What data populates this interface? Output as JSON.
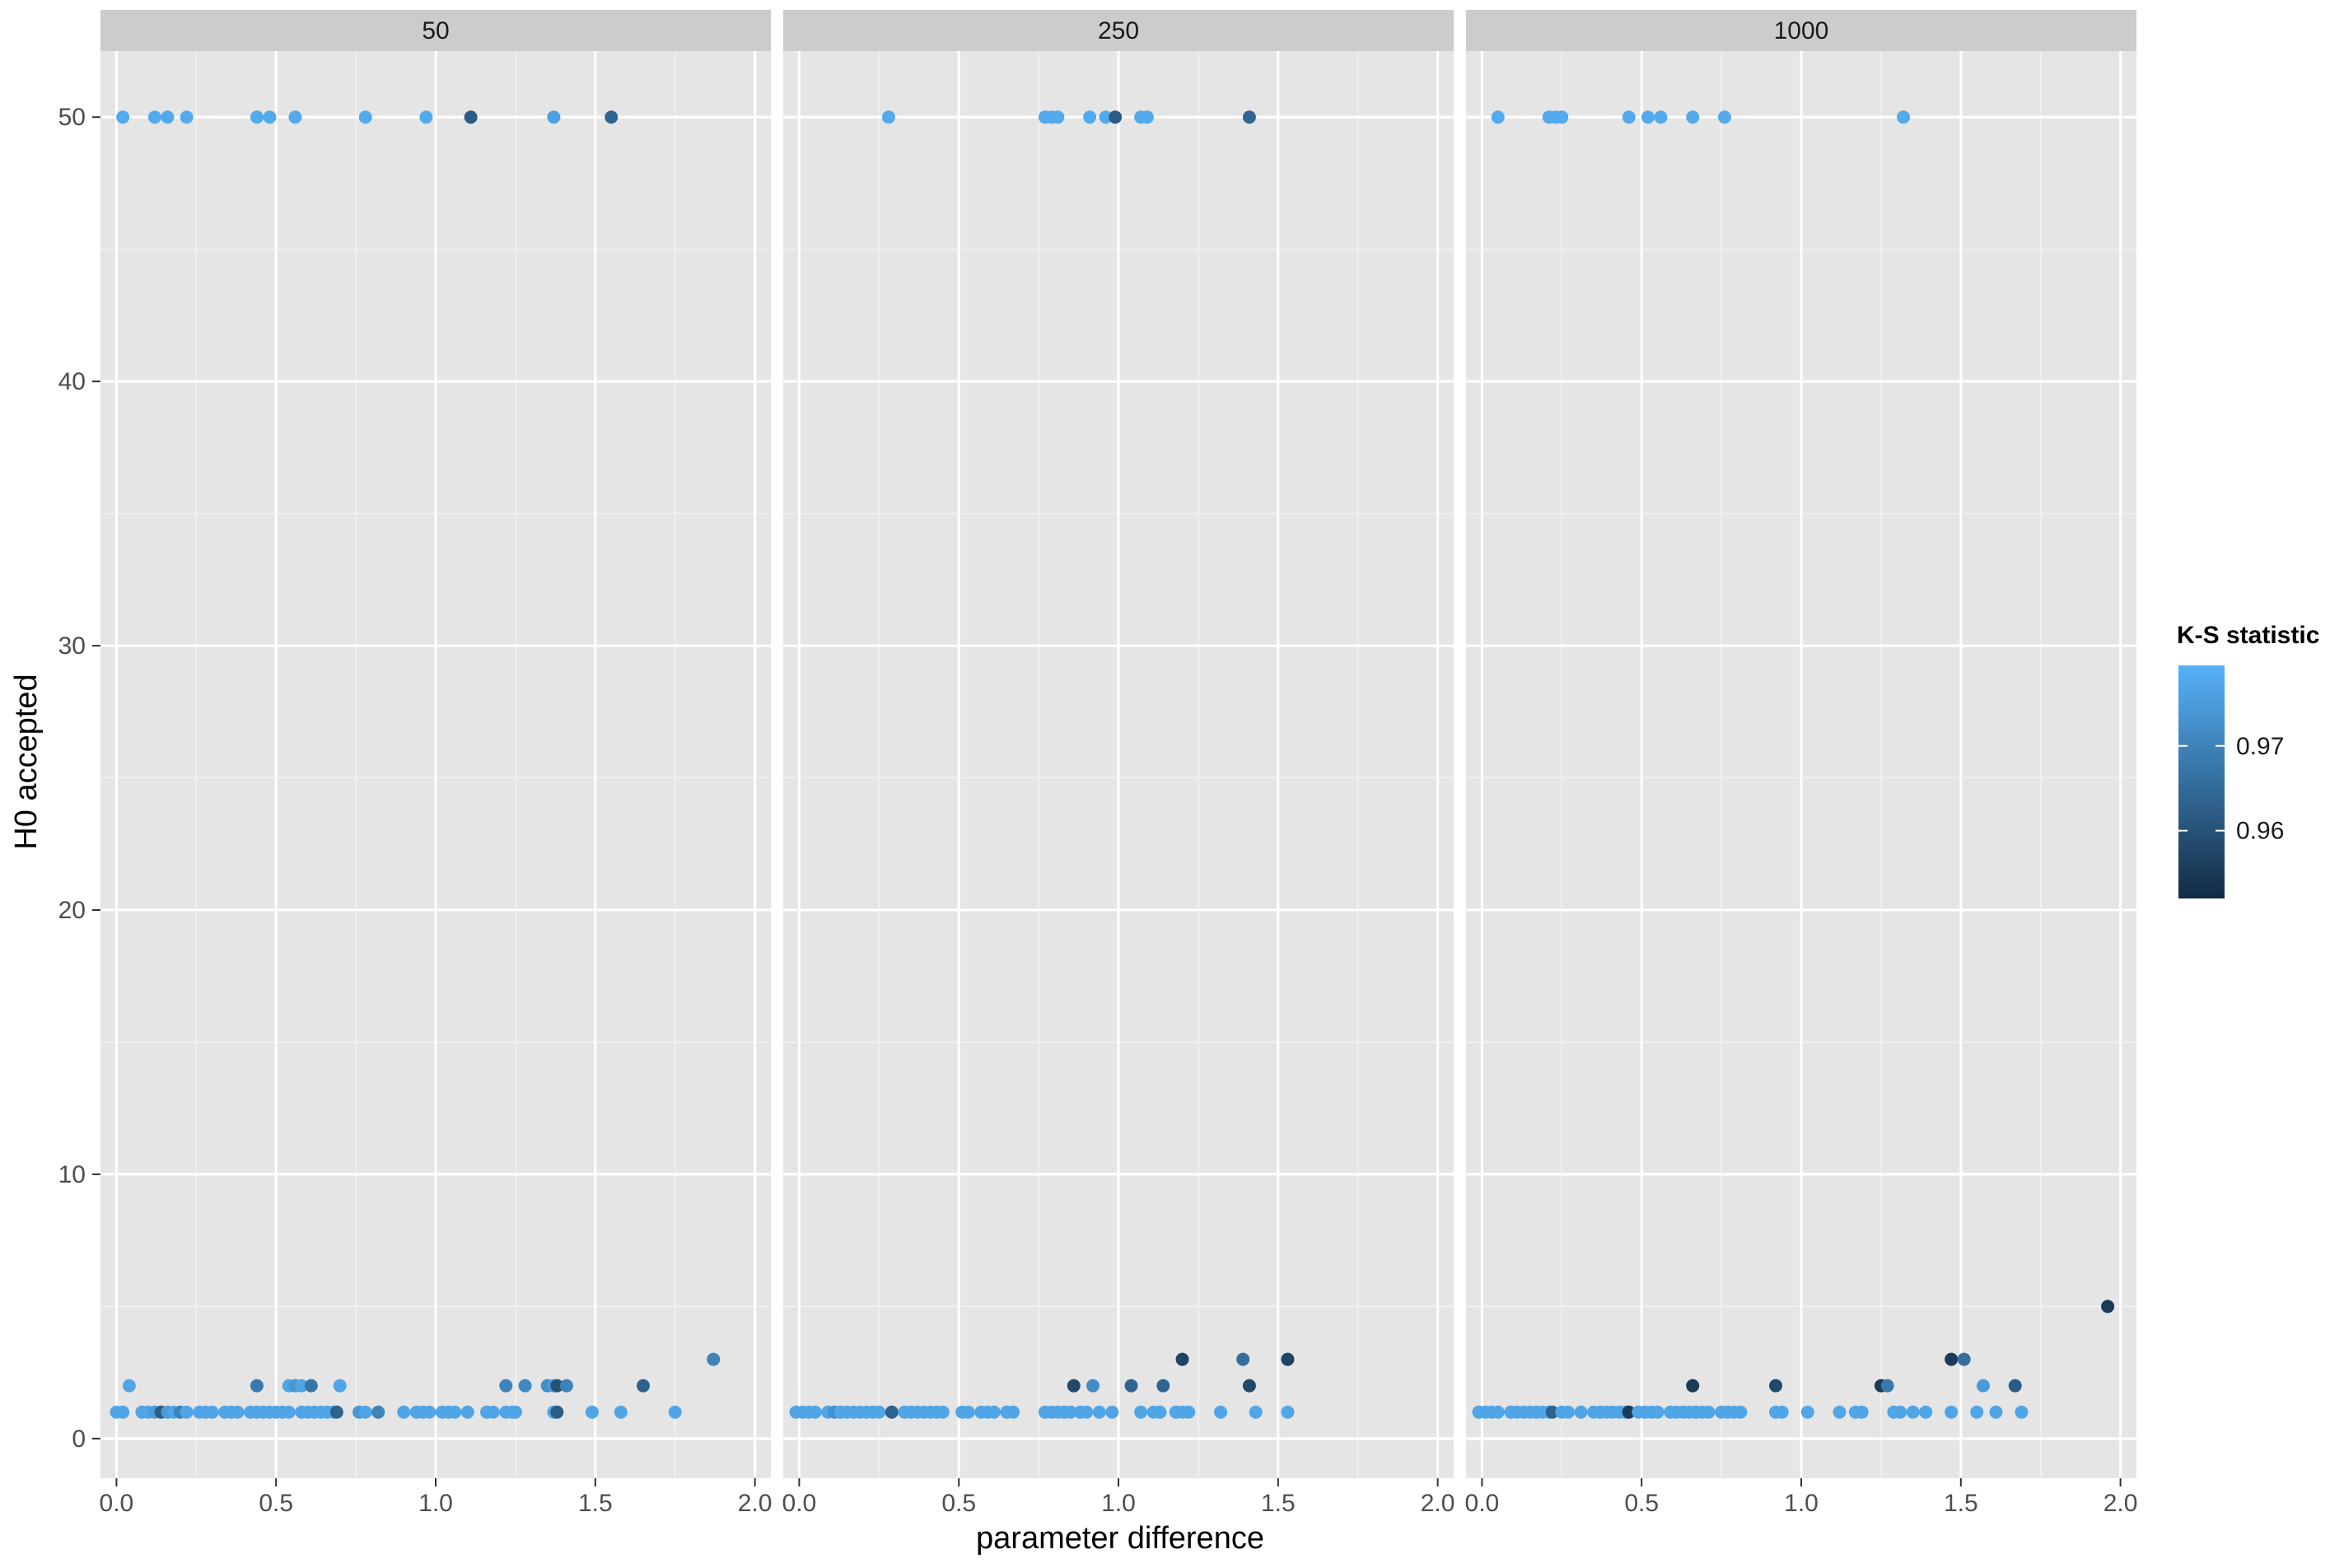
{
  "chart_data": {
    "type": "scatter",
    "facet_labels": [
      "50",
      "250",
      "1000"
    ],
    "xlabel": "parameter difference",
    "ylabel": "H0 accepted",
    "xlim": [
      -0.05,
      2.05
    ],
    "ylim": [
      -1.5,
      52.5
    ],
    "xticks": [
      "0.0",
      "0.5",
      "1.0",
      "1.5",
      "2.0"
    ],
    "xtick_values": [
      0,
      0.5,
      1,
      1.5,
      2
    ],
    "yticks": [
      "0",
      "10",
      "20",
      "30",
      "40",
      "50"
    ],
    "ytick_values": [
      0,
      10,
      20,
      30,
      40,
      50
    ],
    "grid": true,
    "legend": {
      "title": "K-S statistic",
      "position": "right",
      "ticks": [
        "0.97",
        "0.96"
      ],
      "tick_values": [
        0.97,
        0.96
      ],
      "range": [
        0.952,
        0.9795
      ],
      "color_low": "#132B43",
      "color_high": "#56B1F7"
    },
    "colors": {
      "panel_bg": "#e5e5e5",
      "strip_bg": "#cccccc",
      "grid_major": "#ffffff",
      "grid_minor": "#f2f2f2",
      "tick_text": "#4d4d4d"
    },
    "series": [
      {
        "facet": "50",
        "points": [
          [
            0.02,
            50,
            0.978
          ],
          [
            0.12,
            50,
            0.978
          ],
          [
            0.16,
            50,
            0.978
          ],
          [
            0.22,
            50,
            0.978
          ],
          [
            0.44,
            50,
            0.978
          ],
          [
            0.48,
            50,
            0.978
          ],
          [
            0.56,
            50,
            0.978
          ],
          [
            0.78,
            50,
            0.978
          ],
          [
            0.97,
            50,
            0.978
          ],
          [
            1.11,
            50,
            0.962
          ],
          [
            1.37,
            50,
            0.976
          ],
          [
            1.55,
            50,
            0.964
          ],
          [
            0.0,
            1,
            0.977
          ],
          [
            0.02,
            1,
            0.977
          ],
          [
            0.04,
            2,
            0.977
          ],
          [
            0.08,
            1,
            0.977
          ],
          [
            0.1,
            1,
            0.977
          ],
          [
            0.12,
            1,
            0.975
          ],
          [
            0.14,
            1,
            0.962
          ],
          [
            0.16,
            1,
            0.975
          ],
          [
            0.18,
            1,
            0.977
          ],
          [
            0.2,
            1,
            0.97
          ],
          [
            0.22,
            1,
            0.977
          ],
          [
            0.26,
            1,
            0.977
          ],
          [
            0.28,
            1,
            0.977
          ],
          [
            0.3,
            1,
            0.977
          ],
          [
            0.34,
            1,
            0.977
          ],
          [
            0.36,
            1,
            0.977
          ],
          [
            0.38,
            1,
            0.977
          ],
          [
            0.42,
            1,
            0.977
          ],
          [
            0.44,
            1,
            0.977
          ],
          [
            0.44,
            2,
            0.968
          ],
          [
            0.46,
            1,
            0.977
          ],
          [
            0.48,
            1,
            0.977
          ],
          [
            0.5,
            1,
            0.977
          ],
          [
            0.52,
            1,
            0.977
          ],
          [
            0.54,
            1,
            0.977
          ],
          [
            0.54,
            2,
            0.977
          ],
          [
            0.56,
            2,
            0.974
          ],
          [
            0.58,
            2,
            0.977
          ],
          [
            0.58,
            1,
            0.977
          ],
          [
            0.6,
            1,
            0.977
          ],
          [
            0.61,
            2,
            0.967
          ],
          [
            0.62,
            1,
            0.977
          ],
          [
            0.64,
            1,
            0.977
          ],
          [
            0.66,
            1,
            0.977
          ],
          [
            0.68,
            1,
            0.977
          ],
          [
            0.69,
            1,
            0.963
          ],
          [
            0.7,
            2,
            0.977
          ],
          [
            0.76,
            1,
            0.974
          ],
          [
            0.78,
            1,
            0.977
          ],
          [
            0.82,
            1,
            0.97
          ],
          [
            0.9,
            1,
            0.977
          ],
          [
            0.94,
            1,
            0.977
          ],
          [
            0.96,
            1,
            0.977
          ],
          [
            0.98,
            1,
            0.977
          ],
          [
            1.02,
            1,
            0.977
          ],
          [
            1.04,
            1,
            0.977
          ],
          [
            1.06,
            1,
            0.977
          ],
          [
            1.1,
            1,
            0.977
          ],
          [
            1.16,
            1,
            0.977
          ],
          [
            1.18,
            1,
            0.977
          ],
          [
            1.22,
            2,
            0.97
          ],
          [
            1.22,
            1,
            0.977
          ],
          [
            1.24,
            1,
            0.977
          ],
          [
            1.25,
            1,
            0.977
          ],
          [
            1.28,
            2,
            0.971
          ],
          [
            1.35,
            2,
            0.972
          ],
          [
            1.37,
            2,
            0.975
          ],
          [
            1.37,
            1,
            0.977
          ],
          [
            1.38,
            1,
            0.962
          ],
          [
            1.38,
            2,
            0.96
          ],
          [
            1.41,
            2,
            0.97
          ],
          [
            1.49,
            1,
            0.977
          ],
          [
            1.58,
            1,
            0.977
          ],
          [
            1.65,
            2,
            0.963
          ],
          [
            1.75,
            1,
            0.977
          ],
          [
            1.87,
            3,
            0.97
          ]
        ]
      },
      {
        "facet": "250",
        "points": [
          [
            0.28,
            50,
            0.978
          ],
          [
            0.77,
            50,
            0.978
          ],
          [
            0.79,
            50,
            0.978
          ],
          [
            0.81,
            50,
            0.978
          ],
          [
            0.91,
            50,
            0.978
          ],
          [
            0.96,
            50,
            0.978
          ],
          [
            0.99,
            50,
            0.962
          ],
          [
            1.07,
            50,
            0.978
          ],
          [
            1.09,
            50,
            0.978
          ],
          [
            1.41,
            50,
            0.964
          ],
          [
            -0.01,
            1,
            0.977
          ],
          [
            0.01,
            1,
            0.977
          ],
          [
            0.03,
            1,
            0.977
          ],
          [
            0.05,
            1,
            0.977
          ],
          [
            0.09,
            1,
            0.977
          ],
          [
            0.11,
            1,
            0.973
          ],
          [
            0.13,
            1,
            0.977
          ],
          [
            0.15,
            1,
            0.977
          ],
          [
            0.17,
            1,
            0.977
          ],
          [
            0.19,
            1,
            0.977
          ],
          [
            0.21,
            1,
            0.977
          ],
          [
            0.23,
            1,
            0.977
          ],
          [
            0.25,
            1,
            0.977
          ],
          [
            0.29,
            1,
            0.963
          ],
          [
            0.33,
            1,
            0.977
          ],
          [
            0.35,
            1,
            0.977
          ],
          [
            0.37,
            1,
            0.977
          ],
          [
            0.39,
            1,
            0.977
          ],
          [
            0.41,
            1,
            0.977
          ],
          [
            0.43,
            1,
            0.977
          ],
          [
            0.45,
            1,
            0.977
          ],
          [
            0.51,
            1,
            0.977
          ],
          [
            0.53,
            1,
            0.977
          ],
          [
            0.57,
            1,
            0.977
          ],
          [
            0.59,
            1,
            0.977
          ],
          [
            0.61,
            1,
            0.977
          ],
          [
            0.65,
            1,
            0.977
          ],
          [
            0.67,
            1,
            0.977
          ],
          [
            0.77,
            1,
            0.977
          ],
          [
            0.79,
            1,
            0.977
          ],
          [
            0.81,
            1,
            0.977
          ],
          [
            0.83,
            1,
            0.977
          ],
          [
            0.85,
            1,
            0.977
          ],
          [
            0.86,
            2,
            0.958
          ],
          [
            0.88,
            1,
            0.977
          ],
          [
            0.9,
            1,
            0.977
          ],
          [
            0.92,
            2,
            0.972
          ],
          [
            0.94,
            1,
            0.977
          ],
          [
            0.98,
            1,
            0.977
          ],
          [
            1.04,
            2,
            0.964
          ],
          [
            1.07,
            1,
            0.977
          ],
          [
            1.11,
            1,
            0.977
          ],
          [
            1.13,
            1,
            0.977
          ],
          [
            1.14,
            2,
            0.964
          ],
          [
            1.18,
            1,
            0.977
          ],
          [
            1.2,
            3,
            0.957
          ],
          [
            1.2,
            1,
            0.977
          ],
          [
            1.22,
            1,
            0.977
          ],
          [
            1.32,
            1,
            0.977
          ],
          [
            1.39,
            3,
            0.966
          ],
          [
            1.41,
            2,
            0.958
          ],
          [
            1.43,
            1,
            0.977
          ],
          [
            1.53,
            3,
            0.957
          ],
          [
            1.53,
            1,
            0.977
          ]
        ]
      },
      {
        "facet": "1000",
        "points": [
          [
            0.05,
            50,
            0.978
          ],
          [
            0.21,
            50,
            0.978
          ],
          [
            0.23,
            50,
            0.978
          ],
          [
            0.25,
            50,
            0.978
          ],
          [
            0.46,
            50,
            0.978
          ],
          [
            0.52,
            50,
            0.978
          ],
          [
            0.56,
            50,
            0.978
          ],
          [
            0.66,
            50,
            0.978
          ],
          [
            0.76,
            50,
            0.978
          ],
          [
            1.32,
            50,
            0.978
          ],
          [
            -0.01,
            1,
            0.977
          ],
          [
            0.01,
            1,
            0.977
          ],
          [
            0.03,
            1,
            0.977
          ],
          [
            0.05,
            1,
            0.977
          ],
          [
            0.09,
            1,
            0.977
          ],
          [
            0.11,
            1,
            0.977
          ],
          [
            0.13,
            1,
            0.977
          ],
          [
            0.15,
            1,
            0.977
          ],
          [
            0.17,
            1,
            0.977
          ],
          [
            0.19,
            1,
            0.977
          ],
          [
            0.21,
            1,
            0.977
          ],
          [
            0.22,
            1,
            0.963
          ],
          [
            0.25,
            1,
            0.977
          ],
          [
            0.27,
            1,
            0.977
          ],
          [
            0.31,
            1,
            0.977
          ],
          [
            0.35,
            1,
            0.977
          ],
          [
            0.37,
            1,
            0.977
          ],
          [
            0.39,
            1,
            0.977
          ],
          [
            0.41,
            1,
            0.977
          ],
          [
            0.43,
            1,
            0.977
          ],
          [
            0.45,
            1,
            0.977
          ],
          [
            0.46,
            1,
            0.955
          ],
          [
            0.49,
            1,
            0.977
          ],
          [
            0.51,
            1,
            0.977
          ],
          [
            0.53,
            1,
            0.977
          ],
          [
            0.55,
            1,
            0.977
          ],
          [
            0.59,
            1,
            0.977
          ],
          [
            0.61,
            1,
            0.977
          ],
          [
            0.63,
            1,
            0.977
          ],
          [
            0.65,
            1,
            0.977
          ],
          [
            0.66,
            2,
            0.955
          ],
          [
            0.67,
            1,
            0.977
          ],
          [
            0.69,
            1,
            0.977
          ],
          [
            0.71,
            1,
            0.977
          ],
          [
            0.75,
            1,
            0.977
          ],
          [
            0.77,
            1,
            0.977
          ],
          [
            0.79,
            1,
            0.977
          ],
          [
            0.81,
            1,
            0.977
          ],
          [
            0.92,
            2,
            0.958
          ],
          [
            0.92,
            1,
            0.977
          ],
          [
            0.94,
            1,
            0.977
          ],
          [
            1.02,
            1,
            0.977
          ],
          [
            1.12,
            1,
            0.977
          ],
          [
            1.17,
            1,
            0.977
          ],
          [
            1.19,
            1,
            0.977
          ],
          [
            1.25,
            2,
            0.955
          ],
          [
            1.27,
            2,
            0.968
          ],
          [
            1.29,
            1,
            0.977
          ],
          [
            1.31,
            1,
            0.977
          ],
          [
            1.35,
            1,
            0.977
          ],
          [
            1.39,
            1,
            0.977
          ],
          [
            1.47,
            3,
            0.955
          ],
          [
            1.47,
            1,
            0.977
          ],
          [
            1.51,
            3,
            0.966
          ],
          [
            1.55,
            1,
            0.977
          ],
          [
            1.57,
            2,
            0.975
          ],
          [
            1.61,
            1,
            0.977
          ],
          [
            1.67,
            2,
            0.962
          ],
          [
            1.69,
            1,
            0.977
          ],
          [
            1.96,
            5,
            0.955
          ]
        ]
      }
    ]
  }
}
